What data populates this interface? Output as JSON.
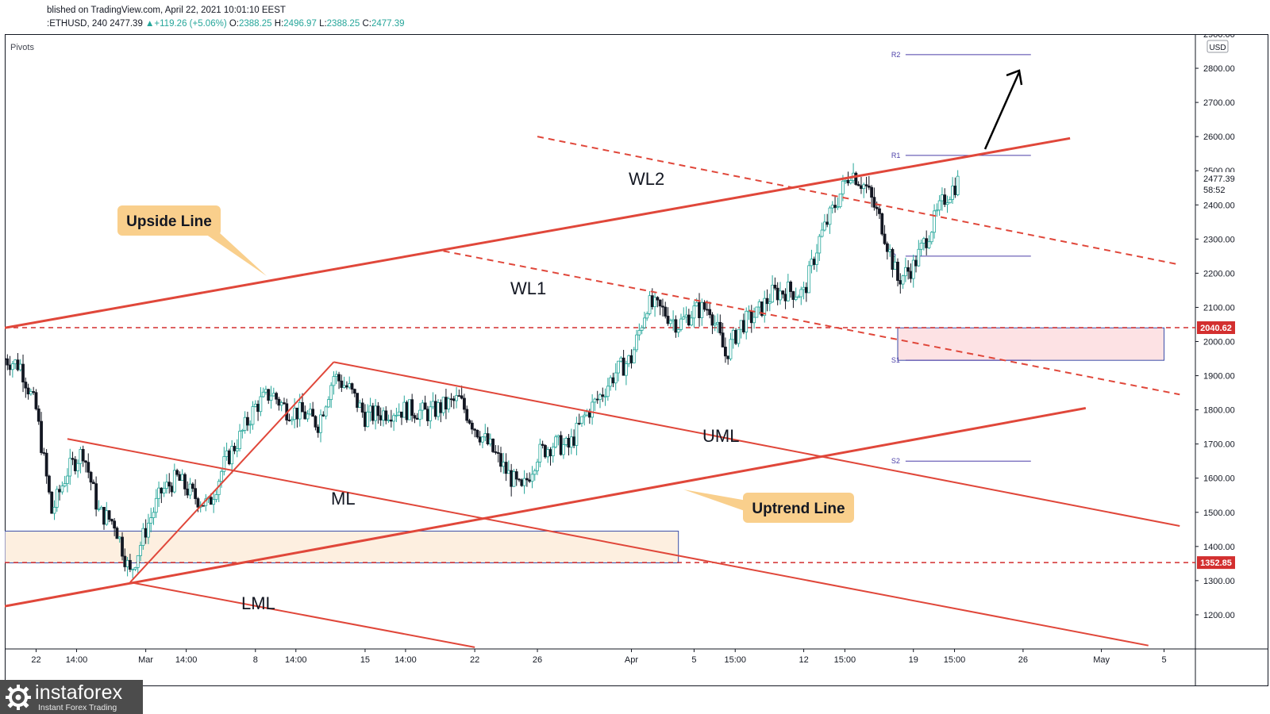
{
  "header": {
    "published": "blished on TradingView.com, April 22, 2021 10:01:10 EEST",
    "symbol": ":ETHUSD, 240",
    "last": "2477.39",
    "change": "▲+119.26 (+5.06%)",
    "o_label": "O:",
    "o": "2388.25",
    "h_label": "H:",
    "h": "2496.97",
    "l_label": "L:",
    "l": "2388.25",
    "c_label": "C:",
    "c": "2477.39"
  },
  "indicator_label": "Pivots",
  "currency": "USD",
  "logo": {
    "brand": "instaforex",
    "tagline": "Instant Forex Trading"
  },
  "colors": {
    "up": "#26a69a",
    "down": "#131722",
    "lines": "#e0473a",
    "pivot": "#4b3fa8",
    "callout": "#f9cf8c",
    "zone_red": "#fde2e4",
    "zone_sand": "#fdefe0"
  },
  "chart_data": {
    "type": "candlestick",
    "symbol": "ETHUSD",
    "timeframe": "240",
    "ylim": [
      1100,
      2900
    ],
    "xlim": [
      "2021-02-20",
      "2021-05-07"
    ],
    "y_ticks": [
      1200,
      1300,
      1400,
      1500,
      1600,
      1700,
      1800,
      1900,
      2000,
      2100,
      2200,
      2300,
      2400,
      2500,
      2600,
      2700,
      2800,
      2900
    ],
    "x_ticks": [
      {
        "label": "22",
        "date": "2021-02-22"
      },
      {
        "label": "14:00",
        "date": "2021-02-24T14:00"
      },
      {
        "label": "Mar",
        "date": "2021-03-01"
      },
      {
        "label": "14:00",
        "date": "2021-03-03T14:00"
      },
      {
        "label": "8",
        "date": "2021-03-08"
      },
      {
        "label": "14:00",
        "date": "2021-03-10T14:00"
      },
      {
        "label": "15",
        "date": "2021-03-15"
      },
      {
        "label": "14:00",
        "date": "2021-03-17T14:00"
      },
      {
        "label": "22",
        "date": "2021-03-22"
      },
      {
        "label": "26",
        "date": "2021-03-26"
      },
      {
        "label": "Apr",
        "date": "2021-04-01"
      },
      {
        "label": "5",
        "date": "2021-04-05"
      },
      {
        "label": "15:00",
        "date": "2021-04-07T15:00"
      },
      {
        "label": "12",
        "date": "2021-04-12"
      },
      {
        "label": "15:00",
        "date": "2021-04-14T15:00"
      },
      {
        "label": "19",
        "date": "2021-04-19"
      },
      {
        "label": "15:00",
        "date": "2021-04-21T15:00"
      },
      {
        "label": "26",
        "date": "2021-04-26"
      },
      {
        "label": "May",
        "date": "2021-05-01"
      },
      {
        "label": "5",
        "date": "2021-05-05"
      }
    ],
    "price_path": [
      [
        "2021-02-20",
        1950
      ],
      [
        "2021-02-21",
        1930
      ],
      [
        "2021-02-22",
        1800
      ],
      [
        "2021-02-23",
        1500
      ],
      [
        "2021-02-24",
        1620
      ],
      [
        "2021-02-25",
        1680
      ],
      [
        "2021-02-26",
        1500
      ],
      [
        "2021-02-27",
        1470
      ],
      [
        "2021-02-28",
        1320
      ],
      [
        "2021-03-01",
        1450
      ],
      [
        "2021-03-02",
        1560
      ],
      [
        "2021-03-03",
        1600
      ],
      [
        "2021-03-04",
        1550
      ],
      [
        "2021-03-05",
        1520
      ],
      [
        "2021-03-06",
        1640
      ],
      [
        "2021-03-07",
        1720
      ],
      [
        "2021-03-08",
        1810
      ],
      [
        "2021-03-09",
        1850
      ],
      [
        "2021-03-10",
        1800
      ],
      [
        "2021-03-11",
        1790
      ],
      [
        "2021-03-12",
        1760
      ],
      [
        "2021-03-13",
        1900
      ],
      [
        "2021-03-14",
        1860
      ],
      [
        "2021-03-15",
        1780
      ],
      [
        "2021-03-16",
        1790
      ],
      [
        "2021-03-17",
        1800
      ],
      [
        "2021-03-18",
        1800
      ],
      [
        "2021-03-19",
        1790
      ],
      [
        "2021-03-20",
        1810
      ],
      [
        "2021-03-21",
        1830
      ],
      [
        "2021-03-22",
        1750
      ],
      [
        "2021-03-23",
        1690
      ],
      [
        "2021-03-24",
        1620
      ],
      [
        "2021-03-25",
        1560
      ],
      [
        "2021-03-26",
        1670
      ],
      [
        "2021-03-27",
        1700
      ],
      [
        "2021-03-28",
        1690
      ],
      [
        "2021-03-29",
        1780
      ],
      [
        "2021-03-30",
        1840
      ],
      [
        "2021-03-31",
        1910
      ],
      [
        "2021-04-01",
        1950
      ],
      [
        "2021-04-02",
        2110
      ],
      [
        "2021-04-03",
        2090
      ],
      [
        "2021-04-04",
        2050
      ],
      [
        "2021-04-05",
        2090
      ],
      [
        "2021-04-06",
        2100
      ],
      [
        "2021-04-07",
        1960
      ],
      [
        "2021-04-08",
        2050
      ],
      [
        "2021-04-09",
        2080
      ],
      [
        "2021-04-10",
        2140
      ],
      [
        "2021-04-11",
        2150
      ],
      [
        "2021-04-12",
        2140
      ],
      [
        "2021-04-13",
        2300
      ],
      [
        "2021-04-14",
        2400
      ],
      [
        "2021-04-15",
        2500
      ],
      [
        "2021-04-16",
        2450
      ],
      [
        "2021-04-17",
        2340
      ],
      [
        "2021-04-18",
        2180
      ],
      [
        "2021-04-19",
        2220
      ],
      [
        "2021-04-20",
        2320
      ],
      [
        "2021-04-21",
        2420
      ],
      [
        "2021-04-22",
        2477.39
      ]
    ],
    "levels": [
      {
        "label": "2040.62",
        "value": 2040.62,
        "style": "dashed"
      },
      {
        "label": "1352.85",
        "value": 1352.85,
        "style": "dashed"
      }
    ],
    "pivots": [
      {
        "label": "R2",
        "value": 2840
      },
      {
        "label": "R1",
        "value": 2545
      },
      {
        "label": "P",
        "value": 2250
      },
      {
        "label": "S1",
        "value": 1945
      },
      {
        "label": "S2",
        "value": 1650
      }
    ],
    "current_price": {
      "label": "2477.39",
      "countdown": "58:52",
      "value": 2477.39
    },
    "zones": [
      {
        "from": "2021-04-18",
        "to": "2021-05-05",
        "y0": 1945,
        "y1": 2040,
        "kind": "resistance-turned-support"
      },
      {
        "from": "2021-02-20",
        "to": "2021-04-04",
        "y0": 1352,
        "y1": 1445,
        "kind": "demand"
      }
    ],
    "lines": [
      {
        "label": "Upside Line",
        "start": [
          "2021-02-20",
          2040
        ],
        "end": [
          "2021-04-29",
          2595
        ],
        "style": "solid"
      },
      {
        "label": "Uptrend Line",
        "start": [
          "2021-02-20",
          1225
        ],
        "end": [
          "2021-04-30",
          1805
        ],
        "style": "solid"
      },
      {
        "label": "WL2",
        "start": [
          "2021-03-26",
          2600
        ],
        "end": [
          "2021-05-06",
          2225
        ],
        "style": "dashed"
      },
      {
        "label": "WL1",
        "start": [
          "2021-03-20",
          2265
        ],
        "end": [
          "2021-05-06",
          1845
        ],
        "style": "dashed"
      },
      {
        "label": "UML",
        "start": [
          "2021-03-13",
          1940
        ],
        "end": [
          "2021-05-06",
          1460
        ],
        "style": "solid"
      },
      {
        "label": "ML",
        "start": [
          "2021-02-24",
          1715
        ],
        "end": [
          "2021-05-04",
          1110
        ],
        "style": "solid"
      },
      {
        "label": "LML",
        "start": [
          "2021-02-28",
          1295
        ],
        "end": [
          "2021-03-22",
          1105
        ],
        "style": "solid"
      }
    ],
    "annotations": [
      {
        "text": "Upside Line",
        "kind": "callout"
      },
      {
        "text": "Uptrend Line",
        "kind": "callout"
      },
      {
        "text": "WL2"
      },
      {
        "text": "WL1"
      },
      {
        "text": "UML"
      },
      {
        "text": "ML"
      },
      {
        "text": "LML"
      }
    ]
  }
}
